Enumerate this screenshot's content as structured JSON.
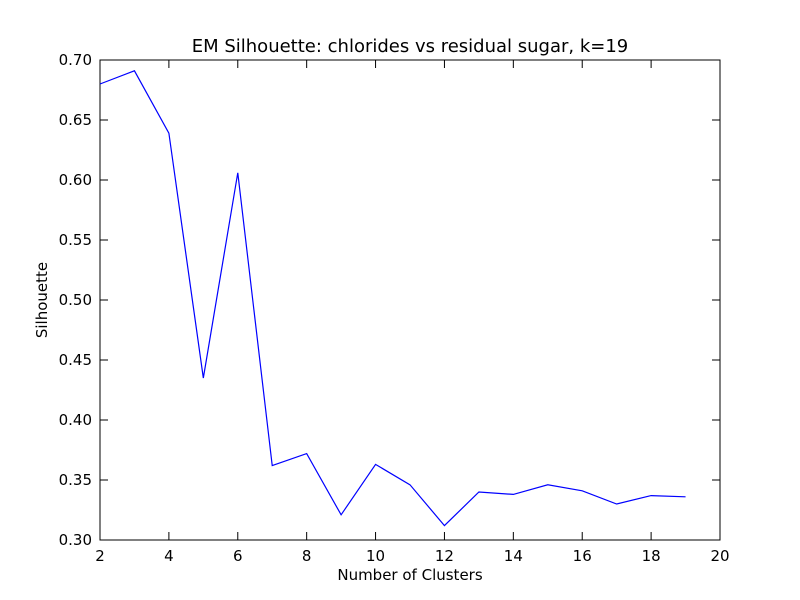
{
  "chart_data": {
    "type": "line",
    "title": "EM Silhouette: chlorides vs residual sugar, k=19",
    "xlabel": "Number of Clusters",
    "ylabel": "Silhouette",
    "xlim": [
      2,
      20
    ],
    "ylim": [
      0.3,
      0.7
    ],
    "xticks": [
      2,
      4,
      6,
      8,
      10,
      12,
      14,
      16,
      18,
      20
    ],
    "yticks": [
      0.3,
      0.35,
      0.4,
      0.45,
      0.5,
      0.55,
      0.6,
      0.65,
      0.7
    ],
    "ytick_labels": [
      "0.30",
      "0.35",
      "0.40",
      "0.45",
      "0.50",
      "0.55",
      "0.60",
      "0.65",
      "0.70"
    ],
    "grid": false,
    "series": [
      {
        "color": "#0000ff",
        "x": [
          2,
          3,
          4,
          5,
          6,
          7,
          8,
          9,
          10,
          11,
          12,
          13,
          14,
          15,
          16,
          17,
          18,
          19
        ],
        "y": [
          0.68,
          0.691,
          0.639,
          0.435,
          0.606,
          0.362,
          0.372,
          0.321,
          0.363,
          0.346,
          0.312,
          0.34,
          0.338,
          0.346,
          0.341,
          0.33,
          0.337,
          0.336
        ]
      }
    ]
  }
}
